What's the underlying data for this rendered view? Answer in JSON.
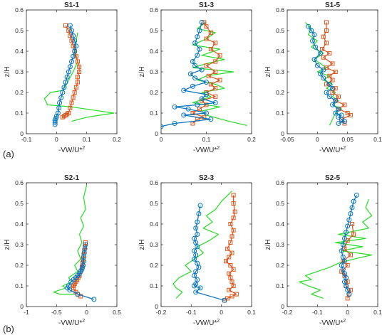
{
  "figure_labels": [
    "(a)",
    "(b)"
  ],
  "chart_data": [
    {
      "type": "line",
      "title": "S1-1",
      "xlabel": "-VW/U*2",
      "ylabel": "z/H",
      "xlim": [
        -0.1,
        0.2
      ],
      "ylim": [
        0,
        0.6
      ],
      "xticks": [
        "-0.1",
        "0",
        "0.1",
        "0.2"
      ],
      "yticks": [
        "0",
        "0.1",
        "0.2",
        "0.3",
        "0.4",
        "0.5",
        "0.6"
      ],
      "series": [
        {
          "color": "#0072BD",
          "marker": "circle",
          "x": [
            0.045,
            0.05,
            0.055,
            0.06,
            0.065,
            0.06,
            0.055,
            0.05,
            0.045,
            0.04,
            0.035,
            0.03,
            0.025,
            0.02,
            0.015,
            0.01,
            0.008,
            0.005,
            0.0,
            -0.002,
            -0.005,
            -0.005,
            -0.005
          ],
          "y": [
            0.525,
            0.5,
            0.475,
            0.45,
            0.425,
            0.4,
            0.375,
            0.35,
            0.325,
            0.3,
            0.275,
            0.25,
            0.225,
            0.2,
            0.175,
            0.15,
            0.125,
            0.1,
            0.085,
            0.075,
            0.065,
            0.055,
            0.045
          ]
        },
        {
          "color": "#D95319",
          "marker": "square",
          "x": [
            0.03,
            0.04,
            0.045,
            0.05,
            0.055,
            0.06,
            0.065,
            0.07,
            0.075,
            0.075,
            0.07,
            0.07,
            0.065,
            0.06,
            0.055,
            0.05,
            0.045,
            0.04,
            0.035,
            0.03,
            0.025,
            0.02
          ],
          "y": [
            0.525,
            0.5,
            0.475,
            0.45,
            0.425,
            0.4,
            0.375,
            0.35,
            0.325,
            0.3,
            0.275,
            0.25,
            0.225,
            0.2,
            0.175,
            0.15,
            0.125,
            0.1,
            0.095,
            0.09,
            0.085,
            0.08
          ]
        },
        {
          "color": "#22DD22",
          "marker": "none",
          "x": [
            0.07,
            0.065,
            0.06,
            0.065,
            0.07,
            0.055,
            0.04,
            0.03,
            0.02,
            -0.02,
            -0.04,
            -0.03,
            0.05,
            0.19,
            0.1,
            0.05
          ],
          "y": [
            0.49,
            0.45,
            0.42,
            0.38,
            0.35,
            0.3,
            0.26,
            0.23,
            0.21,
            0.2,
            0.17,
            0.14,
            0.13,
            0.1,
            0.08,
            0.06
          ]
        }
      ]
    },
    {
      "type": "line",
      "title": "S1-3",
      "xlabel": "-VW/U*2",
      "ylabel": "z/H",
      "xlim": [
        0,
        0.2
      ],
      "ylim": [
        0,
        0.6
      ],
      "xticks": [
        "0",
        "0.1",
        "0.2"
      ],
      "yticks": [
        "0",
        "0.1",
        "0.2",
        "0.3",
        "0.4",
        "0.5",
        "0.6"
      ],
      "series": [
        {
          "color": "#0072BD",
          "marker": "circle",
          "x": [
            0.09,
            0.085,
            0.08,
            0.075,
            0.085,
            0.08,
            0.07,
            0.075,
            0.09,
            0.065,
            0.075,
            0.1,
            0.07,
            0.05,
            0.1,
            0.09,
            0.12,
            0.08,
            0.03,
            0.06,
            0.1,
            0.05,
            0.11,
            0.03,
            0.0
          ],
          "y": [
            0.54,
            0.5,
            0.47,
            0.44,
            0.41,
            0.38,
            0.35,
            0.33,
            0.31,
            0.29,
            0.27,
            0.25,
            0.23,
            0.21,
            0.19,
            0.17,
            0.15,
            0.14,
            0.13,
            0.12,
            0.1,
            0.09,
            0.07,
            0.05,
            0.035
          ]
        },
        {
          "color": "#D95319",
          "marker": "square",
          "x": [
            0.095,
            0.1,
            0.11,
            0.1,
            0.12,
            0.11,
            0.13,
            0.12,
            0.1,
            0.12,
            0.105,
            0.13,
            0.11,
            0.12,
            0.1,
            0.12,
            0.09,
            0.1,
            0.085,
            0.07,
            0.095,
            0.08,
            0.07
          ],
          "y": [
            0.54,
            0.52,
            0.49,
            0.46,
            0.44,
            0.41,
            0.38,
            0.35,
            0.33,
            0.3,
            0.28,
            0.26,
            0.24,
            0.22,
            0.2,
            0.18,
            0.16,
            0.14,
            0.12,
            0.1,
            0.08,
            0.07,
            0.05
          ]
        },
        {
          "color": "#22DD22",
          "marker": "none",
          "x": [
            0.1,
            0.08,
            0.12,
            0.1,
            0.07,
            0.13,
            0.09,
            0.14,
            0.1,
            0.07,
            0.16,
            0.1,
            0.08,
            0.12,
            0.14,
            0.09,
            0.11,
            0.07,
            0.13,
            0.09,
            0.1,
            0.15,
            0.19
          ],
          "y": [
            0.54,
            0.51,
            0.49,
            0.46,
            0.43,
            0.41,
            0.38,
            0.36,
            0.34,
            0.32,
            0.3,
            0.28,
            0.26,
            0.24,
            0.22,
            0.2,
            0.18,
            0.15,
            0.13,
            0.11,
            0.09,
            0.06,
            0.04
          ]
        }
      ]
    },
    {
      "type": "line",
      "title": "S1-5",
      "xlabel": "-VW/U*2",
      "ylabel": "z/H",
      "xlim": [
        -0.05,
        0.1
      ],
      "ylim": [
        0,
        0.6
      ],
      "xticks": [
        "-0.05",
        "0",
        "0.05",
        "0.1"
      ],
      "yticks": [
        "0",
        "0.1",
        "0.2",
        "0.3",
        "0.4",
        "0.5",
        "0.6"
      ],
      "series": [
        {
          "color": "#0072BD",
          "marker": "circle",
          "x": [
            -0.015,
            -0.01,
            -0.005,
            -0.008,
            -0.003,
            0.005,
            -0.005,
            0.0,
            0.01,
            0.005,
            0.01,
            0.02,
            0.025,
            0.015,
            0.02,
            0.03,
            0.025,
            0.035,
            0.03,
            0.04,
            0.035,
            0.04,
            0.045,
            0.035
          ],
          "y": [
            0.52,
            0.5,
            0.48,
            0.45,
            0.42,
            0.39,
            0.36,
            0.33,
            0.31,
            0.29,
            0.27,
            0.24,
            0.22,
            0.2,
            0.18,
            0.16,
            0.14,
            0.12,
            0.1,
            0.09,
            0.08,
            0.07,
            0.06,
            0.05
          ]
        },
        {
          "color": "#D95319",
          "marker": "square",
          "x": [
            0.015,
            0.015,
            0.01,
            0.015,
            0.008,
            0.02,
            0.01,
            0.025,
            0.015,
            0.03,
            0.02,
            0.025,
            0.015,
            0.03,
            0.025,
            0.035,
            0.03,
            0.045,
            0.035,
            0.05,
            0.055,
            0.04,
            0.045
          ],
          "y": [
            0.54,
            0.5,
            0.47,
            0.44,
            0.41,
            0.39,
            0.37,
            0.34,
            0.32,
            0.3,
            0.28,
            0.26,
            0.24,
            0.22,
            0.2,
            0.18,
            0.16,
            0.14,
            0.12,
            0.1,
            0.09,
            0.07,
            0.05
          ]
        },
        {
          "color": "#22DD22",
          "marker": "none",
          "x": [
            -0.02,
            -0.01,
            -0.015,
            0.0,
            -0.01,
            0.01,
            -0.005,
            0.005,
            0.015,
            0.0,
            0.02,
            0.01,
            0.025,
            0.015,
            0.03,
            0.025,
            0.035,
            0.025,
            0.04,
            0.03,
            0.025,
            0.02
          ],
          "y": [
            0.54,
            0.51,
            0.48,
            0.45,
            0.42,
            0.39,
            0.36,
            0.34,
            0.32,
            0.3,
            0.28,
            0.26,
            0.24,
            0.22,
            0.2,
            0.18,
            0.16,
            0.14,
            0.12,
            0.1,
            0.07,
            0.04
          ]
        }
      ]
    },
    {
      "type": "line",
      "title": "S2-1",
      "xlabel": "-VW/U*2",
      "ylabel": "z/H",
      "xlim": [
        -1,
        0.5
      ],
      "ylim": [
        0,
        0.6
      ],
      "xticks": [
        "-1",
        "-0.5",
        "0",
        "0.5"
      ],
      "yticks": [
        "0",
        "0.1",
        "0.2",
        "0.3",
        "0.4",
        "0.5",
        "0.6"
      ],
      "series": [
        {
          "color": "#0072BD",
          "marker": "circle",
          "x": [
            -0.02,
            -0.03,
            -0.04,
            -0.05,
            -0.05,
            -0.06,
            -0.07,
            -0.08,
            -0.1,
            -0.12,
            -0.15,
            -0.18,
            -0.22,
            -0.26,
            -0.3,
            -0.32,
            -0.28,
            -0.15,
            0.12
          ],
          "y": [
            0.3,
            0.28,
            0.26,
            0.24,
            0.22,
            0.2,
            0.19,
            0.18,
            0.17,
            0.16,
            0.15,
            0.14,
            0.13,
            0.12,
            0.1,
            0.09,
            0.08,
            0.06,
            0.035
          ]
        },
        {
          "color": "#D95319",
          "marker": "square",
          "x": [
            -0.02,
            -0.03,
            -0.04,
            -0.05,
            -0.06,
            -0.07,
            -0.08,
            -0.1,
            -0.12,
            -0.14,
            -0.16,
            -0.18,
            -0.2,
            -0.22,
            -0.22,
            -0.18,
            -0.15,
            -0.1
          ],
          "y": [
            0.31,
            0.29,
            0.27,
            0.25,
            0.23,
            0.21,
            0.19,
            0.17,
            0.15,
            0.14,
            0.13,
            0.12,
            0.11,
            0.1,
            0.09,
            0.07,
            0.06,
            0.05
          ]
        },
        {
          "color": "#22DD22",
          "marker": "none",
          "x": [
            0.0,
            -0.05,
            -0.02,
            -0.1,
            -0.05,
            -0.12,
            -0.08,
            -0.15,
            -0.1,
            -0.2,
            -0.15,
            -0.3,
            -0.25,
            -0.4,
            -0.35,
            -0.55,
            -0.45,
            -0.2
          ],
          "y": [
            0.59,
            0.53,
            0.47,
            0.43,
            0.39,
            0.35,
            0.31,
            0.27,
            0.23,
            0.2,
            0.17,
            0.14,
            0.12,
            0.1,
            0.09,
            0.07,
            0.06,
            0.06
          ]
        }
      ]
    },
    {
      "type": "line",
      "title": "S2-3",
      "xlabel": "-VW/U*2",
      "ylabel": "z/H",
      "xlim": [
        -0.2,
        0.1
      ],
      "ylim": [
        0,
        0.6
      ],
      "xticks": [
        "-0.2",
        "-0.1",
        "0",
        "0.1"
      ],
      "yticks": [
        "0",
        "0.1",
        "0.2",
        "0.3",
        "0.4",
        "0.5",
        "0.6"
      ],
      "series": [
        {
          "color": "#0072BD",
          "marker": "circle",
          "x": [
            -0.07,
            -0.075,
            -0.08,
            -0.085,
            -0.08,
            -0.09,
            -0.085,
            -0.08,
            -0.09,
            -0.085,
            -0.09,
            -0.08,
            -0.075,
            -0.085,
            -0.09,
            -0.08,
            -0.085,
            -0.09,
            -0.07,
            -0.085,
            0.01
          ],
          "y": [
            0.49,
            0.45,
            0.41,
            0.38,
            0.35,
            0.33,
            0.31,
            0.29,
            0.27,
            0.25,
            0.23,
            0.21,
            0.19,
            0.17,
            0.15,
            0.13,
            0.11,
            0.1,
            0.09,
            0.07,
            0.03
          ]
        },
        {
          "color": "#D95319",
          "marker": "square",
          "x": [
            0.04,
            0.04,
            0.045,
            0.04,
            0.03,
            0.04,
            0.035,
            0.03,
            0.02,
            0.035,
            0.025,
            0.015,
            0.03,
            0.04,
            0.025,
            0.03,
            0.035,
            0.04,
            0.025,
            0.05,
            0.035,
            0.02,
            0.01
          ],
          "y": [
            0.54,
            0.5,
            0.46,
            0.43,
            0.4,
            0.37,
            0.34,
            0.31,
            0.28,
            0.26,
            0.24,
            0.22,
            0.2,
            0.18,
            0.16,
            0.14,
            0.12,
            0.1,
            0.08,
            0.06,
            0.05,
            0.04,
            0.03
          ]
        },
        {
          "color": "#22DD22",
          "marker": "none",
          "x": [
            0.035,
            0.0,
            -0.02,
            -0.05,
            -0.03,
            -0.06,
            -0.01,
            -0.04,
            -0.08,
            -0.06,
            -0.09,
            -0.12,
            -0.1,
            -0.14,
            -0.16,
            -0.15,
            -0.13,
            -0.15
          ],
          "y": [
            0.56,
            0.51,
            0.47,
            0.44,
            0.41,
            0.38,
            0.35,
            0.32,
            0.29,
            0.26,
            0.23,
            0.2,
            0.17,
            0.14,
            0.11,
            0.09,
            0.07,
            0.04
          ]
        }
      ]
    },
    {
      "type": "line",
      "title": "S2-5",
      "xlabel": "-VW/U*2",
      "ylabel": "z/H",
      "xlim": [
        -0.2,
        0.1
      ],
      "ylim": [
        0,
        0.6
      ],
      "xticks": [
        "-0.2",
        "-0.1",
        "0",
        "0.1"
      ],
      "yticks": [
        "0",
        "0.1",
        "0.2",
        "0.3",
        "0.4",
        "0.5",
        "0.6"
      ],
      "series": [
        {
          "color": "#0072BD",
          "marker": "circle",
          "x": [
            0.03,
            0.02,
            0.015,
            0.01,
            0.005,
            0.0,
            -0.005,
            -0.01,
            -0.015,
            -0.02,
            -0.015,
            -0.01,
            -0.02,
            -0.015,
            -0.01,
            -0.005,
            -0.01,
            -0.005,
            0.0,
            0.005
          ],
          "y": [
            0.54,
            0.51,
            0.48,
            0.45,
            0.42,
            0.39,
            0.36,
            0.33,
            0.3,
            0.27,
            0.24,
            0.22,
            0.2,
            0.18,
            0.16,
            0.14,
            0.12,
            0.1,
            0.08,
            0.06
          ]
        },
        {
          "color": "#D95319",
          "marker": "square",
          "x": [
            0.015,
            0.02,
            0.0,
            -0.01,
            0.01,
            -0.015,
            0.0,
            -0.02,
            -0.01,
            0.0,
            -0.005,
            0.01,
            0.005,
            0.0
          ],
          "y": [
            0.4,
            0.35,
            0.32,
            0.28,
            0.25,
            0.22,
            0.2,
            0.17,
            0.15,
            0.12,
            0.1,
            0.08,
            0.06,
            0.04
          ]
        },
        {
          "color": "#22DD22",
          "marker": "none",
          "x": [
            0.07,
            0.06,
            0.08,
            0.05,
            0.07,
            -0.03,
            0.06,
            -0.04,
            0.05,
            -0.02,
            0.08,
            0.02,
            -0.03,
            -0.06,
            -0.1,
            -0.14,
            -0.12,
            -0.16,
            -0.13,
            -0.09,
            -0.12,
            -0.08
          ],
          "y": [
            0.52,
            0.48,
            0.44,
            0.41,
            0.38,
            0.35,
            0.33,
            0.31,
            0.29,
            0.27,
            0.25,
            0.23,
            0.21,
            0.19,
            0.17,
            0.15,
            0.13,
            0.12,
            0.1,
            0.08,
            0.06,
            0.04
          ]
        }
      ]
    }
  ]
}
